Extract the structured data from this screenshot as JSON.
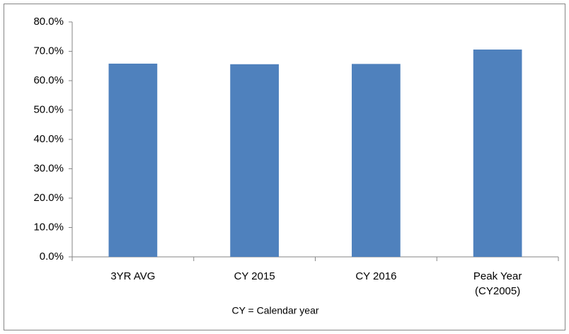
{
  "chart_data": {
    "type": "bar",
    "categories": [
      "3YR AVG",
      "CY 2015",
      "CY 2016",
      "Peak Year\n(CY2005)"
    ],
    "values": [
      65.8,
      65.6,
      65.7,
      70.6
    ],
    "color": "#4f81bd",
    "ylim": [
      0,
      80
    ],
    "yticks": [
      {
        "value": 0,
        "label": "0.0%"
      },
      {
        "value": 10,
        "label": "10.0%"
      },
      {
        "value": 20,
        "label": "20.0%"
      },
      {
        "value": 30,
        "label": "30.0%"
      },
      {
        "value": 40,
        "label": "40.0%"
      },
      {
        "value": 50,
        "label": "50.0%"
      },
      {
        "value": 60,
        "label": "60.0%"
      },
      {
        "value": 70,
        "label": "70.0%"
      },
      {
        "value": 80,
        "label": "80.0%"
      }
    ],
    "grid": false,
    "footnote": "CY = Calendar year"
  }
}
